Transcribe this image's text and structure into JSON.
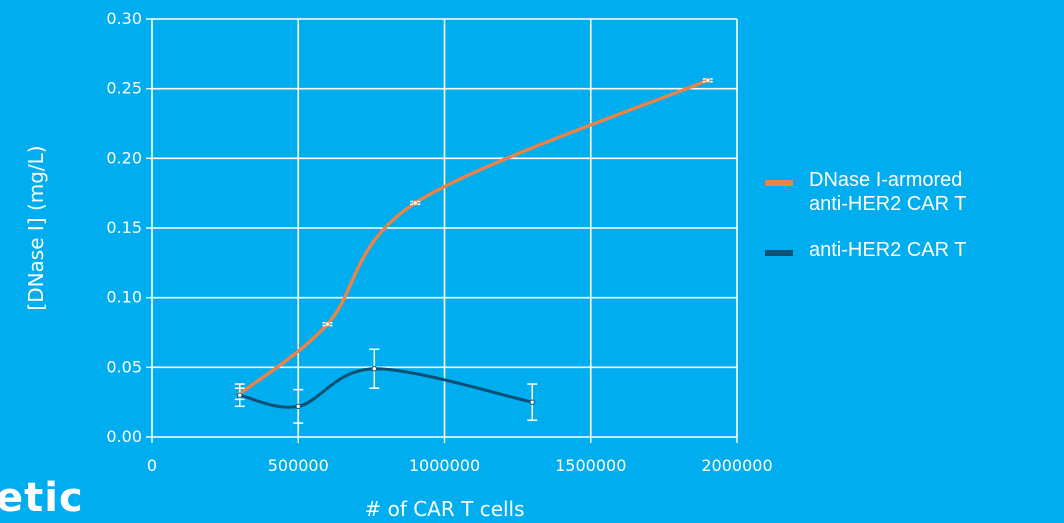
{
  "chart_data": {
    "type": "line",
    "title": "",
    "xlabel": "# of CAR T cells",
    "ylabel": "[DNase I] (mg/L)",
    "xlim": [
      0,
      2000000
    ],
    "ylim": [
      0,
      0.3
    ],
    "x_ticks": [
      "0",
      "500000",
      "1000000",
      "1500000",
      "2000000"
    ],
    "y_ticks": [
      "0.00",
      "0.05",
      "0.10",
      "0.15",
      "0.20",
      "0.25",
      "0.30"
    ],
    "grid": true,
    "smoothed": true,
    "legend_position": "right",
    "series": [
      {
        "name": "DNase I-armored anti-HER2 CAR T",
        "legend_lines": [
          "DNase I-armored",
          "anti-HER2 CAR T"
        ],
        "color": "#e8834a",
        "x": [
          300000,
          600000,
          900000,
          1900000
        ],
        "y": [
          0.031,
          0.081,
          0.168,
          0.256
        ],
        "error": [
          0.004,
          0.001,
          0.001,
          0.001
        ]
      },
      {
        "name": "anti-HER2 CAR T",
        "legend_lines": [
          "anti-HER2 CAR T"
        ],
        "color": "#0c5174",
        "x": [
          300000,
          500000,
          760000,
          1300000
        ],
        "y": [
          0.03,
          0.022,
          0.049,
          0.025
        ],
        "error": [
          0.008,
          0.012,
          0.014,
          0.013
        ]
      }
    ]
  },
  "logo": {
    "text": "etic"
  }
}
